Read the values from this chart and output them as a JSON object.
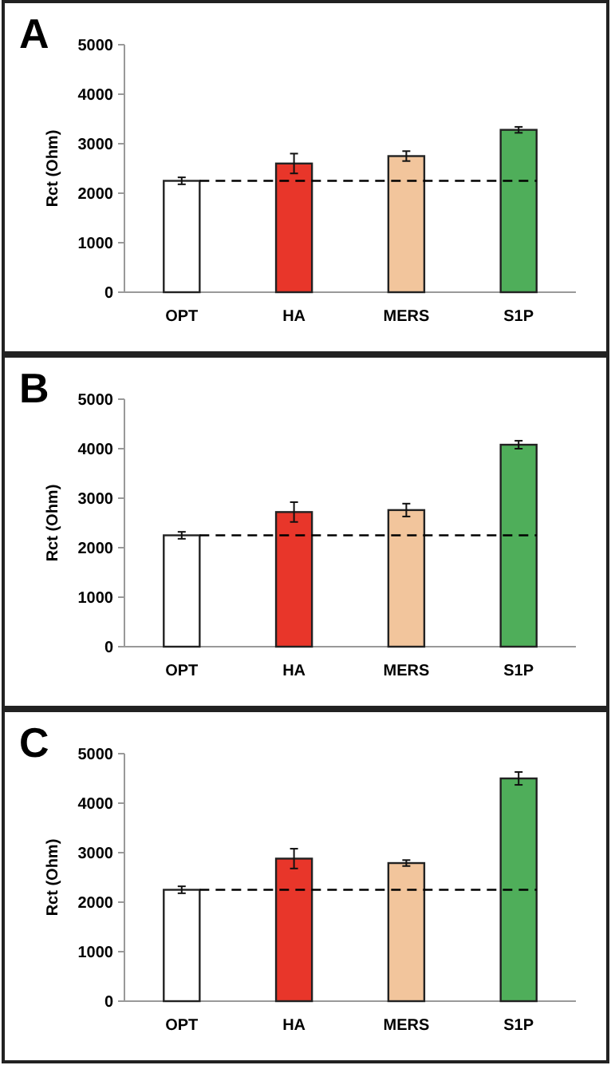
{
  "chart_data": [
    {
      "type": "bar",
      "title": "A",
      "ylabel": "Rct (Ohm)",
      "categories": [
        "OPT",
        "HA",
        "MERS",
        "S1P"
      ],
      "values": [
        2250,
        2600,
        2750,
        3280
      ],
      "errors": [
        70,
        200,
        100,
        60
      ],
      "colors": [
        "#ffffff",
        "#e8362a",
        "#f2c59c",
        "#4fae5a"
      ],
      "ylim": [
        0,
        5000
      ],
      "yticks": [
        0,
        1000,
        2000,
        3000,
        4000,
        5000
      ],
      "ref_lines": [
        {
          "axis": "y",
          "value": 2250,
          "line_style": "dashed",
          "color": "#000000"
        }
      ]
    },
    {
      "type": "bar",
      "title": "B",
      "ylabel": "Rct (Ohm)",
      "categories": [
        "OPT",
        "HA",
        "MERS",
        "S1P"
      ],
      "values": [
        2250,
        2720,
        2760,
        4080
      ],
      "errors": [
        70,
        200,
        130,
        80
      ],
      "colors": [
        "#ffffff",
        "#e8362a",
        "#f2c59c",
        "#4fae5a"
      ],
      "ylim": [
        0,
        5000
      ],
      "yticks": [
        0,
        1000,
        2000,
        3000,
        4000,
        5000
      ],
      "ref_lines": [
        {
          "axis": "y",
          "value": 2250,
          "line_style": "dashed",
          "color": "#000000"
        }
      ]
    },
    {
      "type": "bar",
      "title": "C",
      "ylabel": "Rct (Ohm)",
      "categories": [
        "OPT",
        "HA",
        "MERS",
        "S1P"
      ],
      "values": [
        2250,
        2880,
        2790,
        4500
      ],
      "errors": [
        70,
        200,
        60,
        130
      ],
      "colors": [
        "#ffffff",
        "#e8362a",
        "#f2c59c",
        "#4fae5a"
      ],
      "ylim": [
        0,
        5000
      ],
      "yticks": [
        0,
        1000,
        2000,
        3000,
        4000,
        5000
      ],
      "ref_lines": [
        {
          "axis": "y",
          "value": 2250,
          "line_style": "dashed",
          "color": "#000000"
        }
      ]
    }
  ]
}
